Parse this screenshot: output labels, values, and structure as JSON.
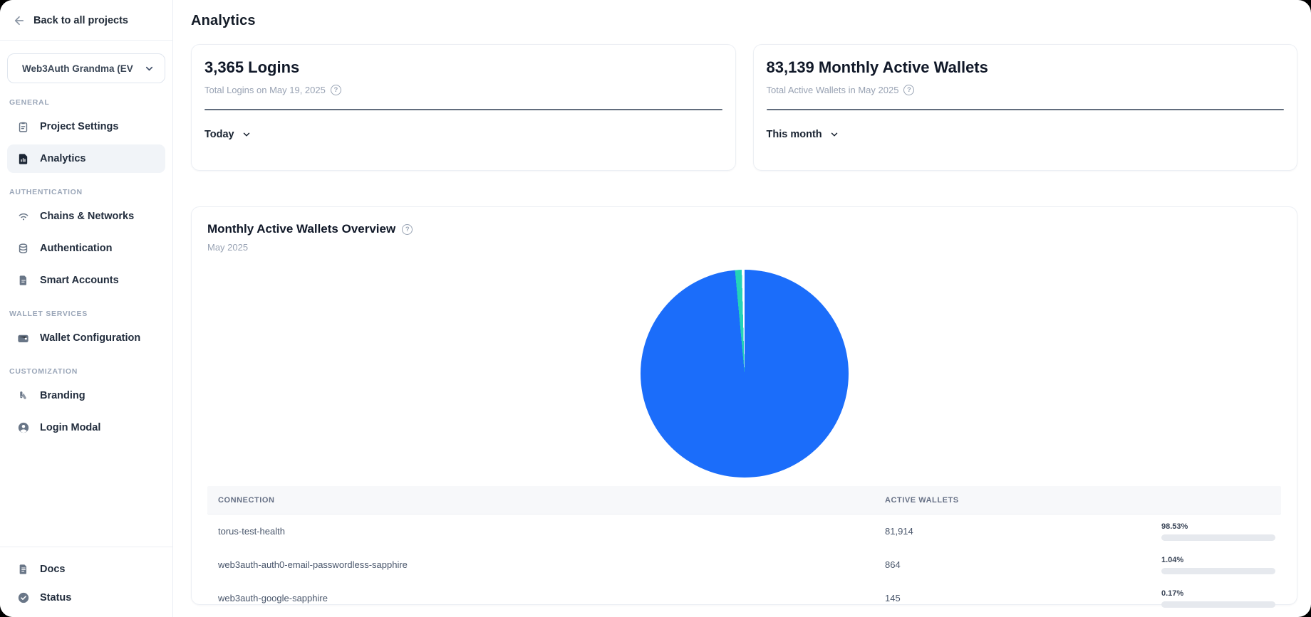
{
  "colors": {
    "accent_blue": "#1b6dfa",
    "accent_teal": "#24d3b8",
    "pie_remainder": "#ffffff"
  },
  "sidebar": {
    "back_label": "Back to all projects",
    "project_selector": "Web3Auth Grandma (EV",
    "sections": [
      {
        "label": "GENERAL",
        "items": [
          {
            "label": "Project Settings"
          },
          {
            "label": "Analytics"
          }
        ]
      },
      {
        "label": "AUTHENTICATION",
        "items": [
          {
            "label": "Chains & Networks"
          },
          {
            "label": "Authentication"
          },
          {
            "label": "Smart Accounts"
          }
        ]
      },
      {
        "label": "WALLET SERVICES",
        "items": [
          {
            "label": "Wallet Configuration"
          }
        ]
      },
      {
        "label": "CUSTOMIZATION",
        "items": [
          {
            "label": "Branding"
          },
          {
            "label": "Login Modal"
          }
        ]
      }
    ],
    "footer_items": [
      {
        "label": "Docs"
      },
      {
        "label": "Status"
      }
    ]
  },
  "header": {
    "title": "Analytics"
  },
  "stat_cards": [
    {
      "title": "3,365 Logins",
      "subtitle": "Total Logins on May 19, 2025",
      "filter": "Today"
    },
    {
      "title": "83,139 Monthly Active Wallets",
      "subtitle": "Total Active Wallets in May 2025",
      "filter": "This month"
    }
  ],
  "overview": {
    "title": "Monthly Active Wallets Overview",
    "subtitle": "May 2025"
  },
  "chart_data": {
    "type": "pie",
    "title": "Monthly Active Wallets Overview",
    "subtitle": "May 2025",
    "total_active_wallets": 83139,
    "slices": [
      {
        "label": "torus-test-health",
        "value": 81914,
        "pct_value": 98.53,
        "color": "#1b6dfa"
      },
      {
        "label": "web3auth-auth0-email-passwordless-sapphire",
        "value": 864,
        "pct_value": 1.04,
        "color": "#24d3b8"
      },
      {
        "label": "web3auth-google-sapphire",
        "value": 145,
        "pct_value": 0.17,
        "color": "#ffffff"
      }
    ],
    "legend_position": "table-below",
    "start_angle_deg": 0,
    "direction": "clockwise"
  },
  "table": {
    "columns": [
      "CONNECTION",
      "ACTIVE WALLETS"
    ],
    "rows": [
      {
        "connection": "torus-test-health",
        "wallets": "81,914",
        "pct": "98.53%",
        "pct_value": 98.53,
        "bar_color": "#1b6dfa"
      },
      {
        "connection": "web3auth-auth0-email-passwordless-sapphire",
        "wallets": "864",
        "pct": "1.04%",
        "pct_value": 1.04,
        "bar_color": "#24d3b8"
      },
      {
        "connection": "web3auth-google-sapphire",
        "wallets": "145",
        "pct": "0.17%",
        "pct_value": 0.17,
        "bar_color": "#24d3b8"
      }
    ]
  }
}
